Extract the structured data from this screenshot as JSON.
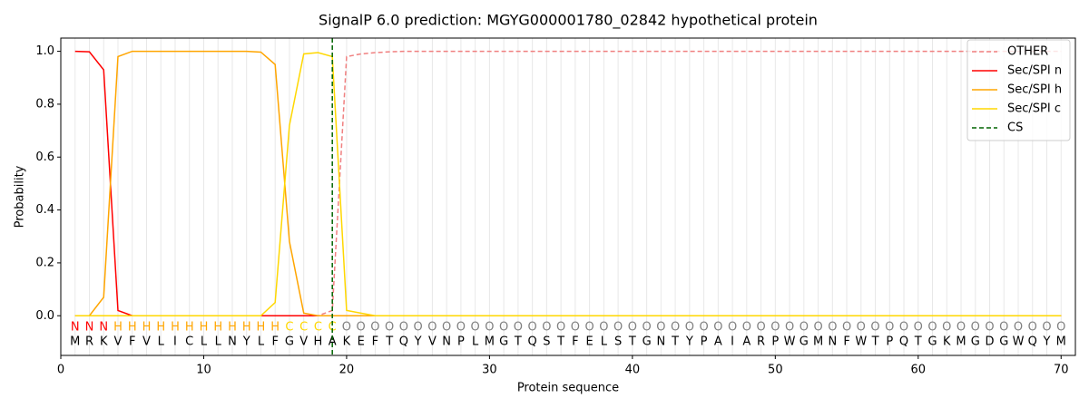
{
  "chart_data": {
    "type": "line",
    "title": "SignalP 6.0 prediction: MGYG000001780_02842 hypothetical protein",
    "xlabel": "Protein sequence",
    "ylabel": "Probability",
    "x": [
      1,
      2,
      3,
      4,
      5,
      6,
      7,
      8,
      9,
      10,
      11,
      12,
      13,
      14,
      15,
      16,
      17,
      18,
      19,
      20,
      21,
      22,
      23,
      24,
      25,
      26,
      27,
      28,
      29,
      30,
      31,
      32,
      33,
      34,
      35,
      36,
      37,
      38,
      39,
      40,
      41,
      42,
      43,
      44,
      45,
      46,
      47,
      48,
      49,
      50,
      51,
      52,
      53,
      54,
      55,
      56,
      57,
      58,
      59,
      60,
      61,
      62,
      63,
      64,
      65,
      66,
      67,
      68,
      69,
      70
    ],
    "sequence": [
      "M",
      "R",
      "K",
      "V",
      "F",
      "V",
      "L",
      "I",
      "C",
      "L",
      "L",
      "N",
      "Y",
      "L",
      "F",
      "G",
      "V",
      "H",
      "A",
      "K",
      "E",
      "F",
      "T",
      "Q",
      "Y",
      "V",
      "N",
      "P",
      "L",
      "M",
      "G",
      "T",
      "Q",
      "S",
      "T",
      "F",
      "E",
      "L",
      "S",
      "T",
      "G",
      "N",
      "T",
      "Y",
      "P",
      "A",
      "I",
      "A",
      "R",
      "P",
      "W",
      "G",
      "M",
      "N",
      "F",
      "W",
      "T",
      "P",
      "Q",
      "T",
      "G",
      "K",
      "M",
      "G",
      "D",
      "G",
      "W",
      "Q",
      "Y",
      "M"
    ],
    "region_labels": [
      "N",
      "N",
      "N",
      "H",
      "H",
      "H",
      "H",
      "H",
      "H",
      "H",
      "H",
      "H",
      "H",
      "H",
      "H",
      "C",
      "C",
      "C",
      "C",
      "O",
      "O",
      "O",
      "O",
      "O",
      "O",
      "O",
      "O",
      "O",
      "O",
      "O",
      "O",
      "O",
      "O",
      "O",
      "O",
      "O",
      "O",
      "O",
      "O",
      "O",
      "O",
      "O",
      "O",
      "O",
      "O",
      "O",
      "O",
      "O",
      "O",
      "O",
      "O",
      "O",
      "O",
      "O",
      "O",
      "O",
      "O",
      "O",
      "O",
      "O",
      "O",
      "O",
      "O",
      "O",
      "O",
      "O",
      "O",
      "O",
      "O",
      "O"
    ],
    "label_colors": {
      "N": "#ff0000",
      "H": "#ffa500",
      "C": "#ffd700",
      "O": "#808080"
    },
    "series": [
      {
        "name": "OTHER",
        "color": "#f08080",
        "dashed": true,
        "values": [
          0,
          0,
          0,
          0,
          0,
          0,
          0,
          0,
          0,
          0,
          0,
          0,
          0,
          0,
          0,
          0,
          0,
          0,
          0.02,
          0.98,
          0.99,
          0.995,
          0.998,
          1,
          1,
          1,
          1,
          1,
          1,
          1,
          1,
          1,
          1,
          1,
          1,
          1,
          1,
          1,
          1,
          1,
          1,
          1,
          1,
          1,
          1,
          1,
          1,
          1,
          1,
          1,
          1,
          1,
          1,
          1,
          1,
          1,
          1,
          1,
          1,
          1,
          1,
          1,
          1,
          1,
          1,
          1,
          1,
          1,
          1,
          1
        ]
      },
      {
        "name": "Sec/SPI n",
        "color": "#ff0000",
        "dashed": false,
        "values": [
          1,
          0.998,
          0.93,
          0.02,
          0,
          0,
          0,
          0,
          0,
          0,
          0,
          0,
          0,
          0,
          0,
          0,
          0,
          0,
          0,
          0,
          0,
          0,
          0,
          0,
          0,
          0,
          0,
          0,
          0,
          0,
          0,
          0,
          0,
          0,
          0,
          0,
          0,
          0,
          0,
          0,
          0,
          0,
          0,
          0,
          0,
          0,
          0,
          0,
          0,
          0,
          0,
          0,
          0,
          0,
          0,
          0,
          0,
          0,
          0,
          0,
          0,
          0,
          0,
          0,
          0,
          0,
          0,
          0,
          0,
          0
        ]
      },
      {
        "name": "Sec/SPI h",
        "color": "#ffa500",
        "dashed": false,
        "values": [
          0,
          0,
          0.07,
          0.98,
          1,
          1,
          1,
          1,
          1,
          1,
          1,
          1,
          1,
          0.997,
          0.95,
          0.28,
          0.01,
          0,
          0,
          0,
          0,
          0,
          0,
          0,
          0,
          0,
          0,
          0,
          0,
          0,
          0,
          0,
          0,
          0,
          0,
          0,
          0,
          0,
          0,
          0,
          0,
          0,
          0,
          0,
          0,
          0,
          0,
          0,
          0,
          0,
          0,
          0,
          0,
          0,
          0,
          0,
          0,
          0,
          0,
          0,
          0,
          0,
          0,
          0,
          0,
          0,
          0,
          0,
          0,
          0
        ]
      },
      {
        "name": "Sec/SPI c",
        "color": "#ffd700",
        "dashed": false,
        "values": [
          0,
          0,
          0,
          0,
          0,
          0,
          0,
          0,
          0,
          0,
          0,
          0,
          0,
          0,
          0.05,
          0.72,
          0.99,
          0.995,
          0.98,
          0.02,
          0.01,
          0,
          0,
          0,
          0,
          0,
          0,
          0,
          0,
          0,
          0,
          0,
          0,
          0,
          0,
          0,
          0,
          0,
          0,
          0,
          0,
          0,
          0,
          0,
          0,
          0,
          0,
          0,
          0,
          0,
          0,
          0,
          0,
          0,
          0,
          0,
          0,
          0,
          0,
          0,
          0,
          0,
          0,
          0,
          0,
          0,
          0,
          0,
          0,
          0
        ]
      }
    ],
    "cs": {
      "name": "CS",
      "x": 19,
      "color": "#006400"
    },
    "xlim": [
      0,
      71
    ],
    "ylim": [
      -0.15,
      1.05
    ],
    "xticks": [
      0,
      10,
      20,
      30,
      40,
      50,
      60,
      70
    ],
    "yticks": [
      {
        "value": 0,
        "label": "0.0"
      },
      {
        "value": 0.2,
        "label": "0.2"
      },
      {
        "value": 0.4,
        "label": "0.4"
      },
      {
        "value": 0.6,
        "label": "0.6"
      },
      {
        "value": 0.8,
        "label": "0.8"
      },
      {
        "value": 1,
        "label": "1.0"
      }
    ],
    "grid": true,
    "legend": "upper right"
  }
}
